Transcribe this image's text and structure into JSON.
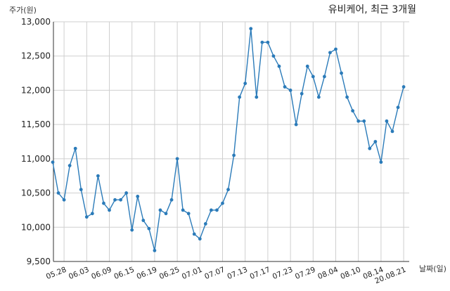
{
  "chart_data": {
    "type": "line",
    "title": "유비케어, 최근 3개월",
    "ylabel": "주가(원)",
    "xlabel": "날짜(일)",
    "ylim": [
      9500,
      13000
    ],
    "yticks": [
      9500,
      10000,
      10500,
      11000,
      11500,
      12000,
      12500,
      13000
    ],
    "ytick_labels": [
      "9,500",
      "10,000",
      "10,500",
      "11,000",
      "11,500",
      "12,000",
      "12,500",
      "13,000"
    ],
    "xtick_labels": [
      "05.28",
      "06.03",
      "06.09",
      "06.15",
      "06.19",
      "06.25",
      "07.01",
      "07.07",
      "07.13",
      "07.17",
      "07.23",
      "07.29",
      "08.04",
      "08.10",
      "08.14",
      "20.08.21"
    ],
    "xtick_index": [
      2,
      6,
      10,
      14,
      18,
      22,
      26,
      30,
      34,
      38,
      42,
      46,
      50,
      54,
      58,
      62
    ],
    "grid": true,
    "line_color": "#2b7bb9",
    "series": [
      {
        "values": [
          10950,
          10500,
          10400,
          10900,
          11150,
          10550,
          10150,
          10200,
          10750,
          10350,
          10250,
          10400,
          10400,
          10500,
          9960,
          10450,
          10100,
          9980,
          9660,
          10250,
          10200,
          10400,
          11000,
          10250,
          10200,
          9900,
          9830,
          10050,
          10250,
          10250,
          10350,
          10550,
          11050,
          11900,
          12100,
          12900,
          11900,
          12700,
          12700,
          12500,
          12350,
          12050,
          12000,
          11500,
          11950,
          12350,
          12200,
          11900,
          12200,
          12550,
          12600,
          12250,
          11900,
          11700,
          11550,
          11550,
          11150,
          11250,
          10950,
          11550,
          11400,
          11750,
          12050
        ]
      }
    ]
  }
}
